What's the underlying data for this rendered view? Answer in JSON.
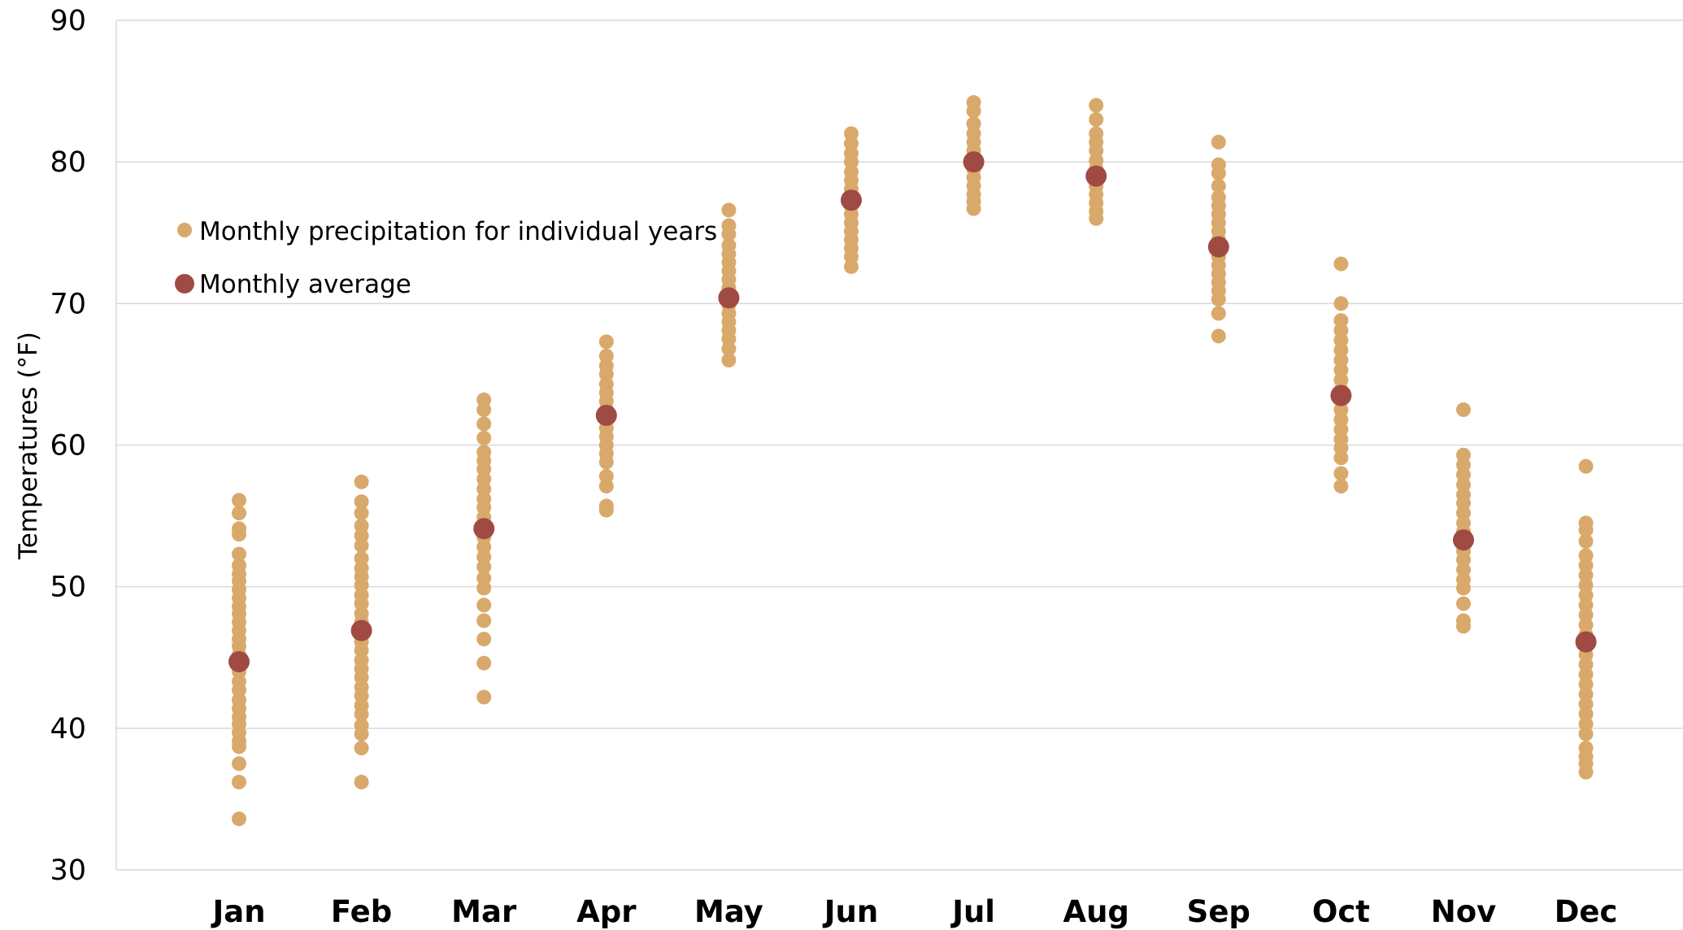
{
  "chart_data": {
    "type": "scatter",
    "title": "",
    "xlabel": "",
    "ylabel": "Temperatures (°F)",
    "ylim": [
      30,
      90
    ],
    "yticks": [
      "30",
      "40",
      "50",
      "60",
      "70",
      "80",
      "90"
    ],
    "grid": true,
    "legend_position": "top-left",
    "categories": [
      "Jan",
      "Feb",
      "Mar",
      "Apr",
      "May",
      "Jun",
      "Jul",
      "Aug",
      "Sep",
      "Oct",
      "Nov",
      "Dec"
    ],
    "series": [
      {
        "name": "Monthly precipitation for individual years",
        "color": "#D9A96C",
        "values": [
          [
            56.1,
            55.2,
            54.1,
            53.7,
            52.3,
            51.5,
            50.9,
            50.4,
            49.8,
            49.2,
            48.6,
            48.1,
            47.5,
            46.9,
            46.3,
            45.8,
            45.2,
            44.6,
            44.0,
            43.3,
            42.7,
            42.0,
            41.4,
            40.8,
            40.3,
            39.7,
            39.1,
            38.7,
            37.5,
            36.2,
            33.6
          ],
          [
            57.4,
            56.0,
            55.2,
            54.3,
            53.6,
            52.9,
            52.0,
            51.3,
            50.7,
            50.1,
            49.4,
            48.8,
            48.1,
            47.5,
            46.8,
            46.1,
            45.5,
            44.8,
            44.2,
            43.6,
            42.9,
            42.3,
            41.6,
            41.0,
            40.2,
            39.6,
            38.6,
            36.2
          ],
          [
            63.2,
            62.5,
            61.5,
            60.5,
            59.5,
            58.9,
            58.3,
            57.6,
            56.9,
            56.2,
            55.6,
            54.9,
            54.2,
            53.5,
            52.8,
            52.1,
            51.4,
            50.6,
            49.9,
            48.7,
            47.6,
            46.3,
            44.6,
            42.2
          ],
          [
            67.3,
            66.3,
            65.6,
            65.0,
            64.3,
            63.7,
            63.1,
            62.5,
            61.8,
            61.2,
            60.6,
            60.0,
            59.4,
            58.8,
            57.8,
            57.1,
            55.7,
            55.4
          ],
          [
            76.6,
            75.5,
            74.9,
            74.1,
            73.5,
            72.9,
            72.3,
            71.7,
            71.1,
            70.5,
            69.9,
            69.3,
            68.7,
            68.1,
            67.5,
            66.8,
            66.0
          ],
          [
            82.0,
            81.3,
            80.6,
            80.0,
            79.3,
            78.7,
            78.1,
            77.5,
            76.9,
            76.3,
            75.7,
            75.1,
            74.5,
            73.9,
            73.3,
            72.6
          ],
          [
            84.2,
            83.6,
            82.7,
            82.0,
            81.4,
            80.8,
            80.1,
            79.5,
            78.9,
            78.3,
            77.7,
            77.2,
            76.7
          ],
          [
            84.0,
            83.0,
            82.0,
            81.4,
            80.8,
            80.1,
            79.5,
            78.9,
            78.3,
            77.7,
            77.1,
            76.5,
            76.0
          ],
          [
            81.4,
            79.8,
            79.2,
            78.3,
            77.5,
            76.9,
            76.3,
            75.7,
            75.1,
            74.5,
            73.9,
            73.3,
            72.7,
            72.1,
            71.5,
            70.9,
            70.3,
            69.3,
            67.7
          ],
          [
            72.8,
            70.0,
            68.8,
            68.1,
            67.4,
            66.7,
            66.0,
            65.3,
            64.6,
            63.9,
            63.2,
            62.5,
            61.8,
            61.1,
            60.4,
            59.8,
            59.1,
            58.0,
            57.1
          ],
          [
            62.5,
            59.3,
            58.6,
            57.9,
            57.2,
            56.5,
            55.9,
            55.2,
            54.5,
            53.9,
            53.2,
            52.5,
            51.9,
            51.2,
            50.5,
            49.9,
            48.8,
            47.6,
            47.2
          ],
          [
            58.5,
            54.5,
            54.0,
            53.2,
            52.2,
            51.5,
            50.8,
            50.1,
            49.4,
            48.7,
            48.0,
            47.3,
            46.6,
            45.9,
            45.2,
            44.5,
            43.8,
            43.1,
            42.4,
            41.7,
            41.0,
            40.3,
            39.6,
            38.6,
            38.0,
            37.5,
            36.9
          ]
        ]
      },
      {
        "name": "Monthly average",
        "color": "#A04A44",
        "values": [
          44.7,
          46.9,
          54.1,
          62.1,
          70.4,
          77.3,
          80.0,
          79.0,
          74.0,
          63.5,
          53.3,
          46.1
        ]
      }
    ]
  }
}
